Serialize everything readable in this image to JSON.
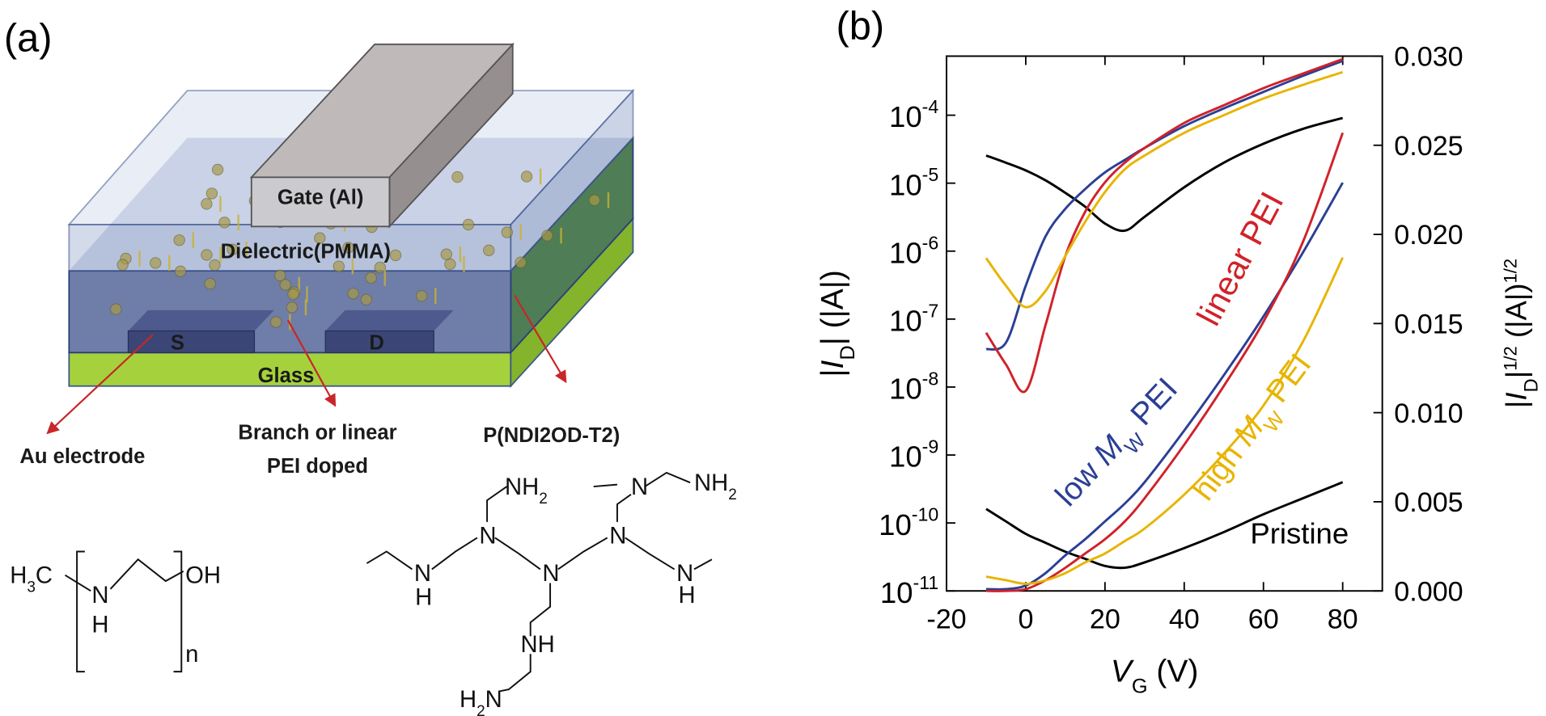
{
  "panel_labels": [
    "(a)",
    "(b)"
  ],
  "diagram": {
    "layers": {
      "gate": "Gate (Al)",
      "dielectric": "Dielectric(PMMA)",
      "source": "S",
      "drain": "D",
      "substrate": "Glass"
    },
    "callouts": {
      "electrode": "Au electrode",
      "dopant": [
        "Branch or linear",
        "PEI doped"
      ],
      "semiconductor": "P(NDI2OD-T2)"
    },
    "linear_pei": {
      "end_left": [
        "H",
        {
          "sub": "3"
        },
        "C"
      ],
      "amine_n": "N",
      "amine_h": "H",
      "end_right": "OH",
      "repeat": "n"
    },
    "branched_pei": {
      "atoms": [
        [
          "N"
        ],
        [
          "H"
        ],
        [
          "N"
        ],
        [
          "N"
        ],
        [
          "N"
        ],
        [
          "N"
        ],
        [
          "H"
        ],
        [
          "NH",
          {
            "sub": "2"
          }
        ],
        [
          "N"
        ],
        [
          "NH",
          {
            "sub": "2"
          }
        ],
        [
          "NH"
        ],
        [
          "H",
          {
            "sub": "2"
          },
          "N"
        ]
      ]
    }
  },
  "chart_data": {
    "type": "line",
    "xlabel": [
      {
        "i": "V"
      },
      {
        "sub": "G"
      },
      " (V)"
    ],
    "ylabel": [
      "|",
      {
        "i": "I"
      },
      {
        "sub": "D"
      },
      "| (|A|)"
    ],
    "y2label": [
      "|",
      {
        "i": "I"
      },
      {
        "sub": "D"
      },
      "|",
      {
        "sup": "1/2"
      },
      " (|A|)",
      {
        "sup": "1/2"
      }
    ],
    "x": [
      -10,
      -5,
      0,
      5,
      10,
      15,
      20,
      25,
      30,
      40,
      50,
      60,
      70,
      80
    ],
    "xlim": [
      -20,
      90
    ],
    "xticks": [
      -20,
      0,
      20,
      40,
      60,
      80
    ],
    "yscale": "log",
    "ylim": [
      1e-11,
      0.00074
    ],
    "yticks": [
      {
        "value": 1e-11,
        "label": "10-11"
      },
      {
        "value": 1e-10,
        "label": "10-10"
      },
      {
        "value": 1e-09,
        "label": "10-9"
      },
      {
        "value": 1e-08,
        "label": "10-8"
      },
      {
        "value": 1e-07,
        "label": "10-7"
      },
      {
        "value": 1e-06,
        "label": "10-6"
      },
      {
        "value": 1e-05,
        "label": "10-5"
      },
      {
        "value": 0.0001,
        "label": "10-4"
      }
    ],
    "y2lim": [
      0,
      0.03
    ],
    "y2ticks": [
      {
        "value": 0,
        "label": "0.000"
      },
      {
        "value": 0.005,
        "label": "0.005"
      },
      {
        "value": 0.01,
        "label": "0.010"
      },
      {
        "value": 0.015,
        "label": "0.015"
      },
      {
        "value": 0.02,
        "label": "0.020"
      },
      {
        "value": 0.025,
        "label": "0.025"
      },
      {
        "value": 0.03,
        "label": "0.030"
      }
    ],
    "series": [
      {
        "color": "#000000",
        "values": [
          2.55e-05,
          2e-05,
          1.54e-05,
          1.1e-05,
          7.2e-06,
          4.5e-06,
          2.55e-06,
          2e-06,
          3.2e-06,
          8.7e-06,
          2e-05,
          3.8e-05,
          6.3e-05,
          9.1e-05
        ]
      },
      {
        "color": "#2b3f95",
        "values": [
          3.6e-08,
          4.5e-08,
          3.1e-07,
          1.65e-06,
          4.2e-06,
          8.2e-06,
          1.44e-05,
          2.2e-05,
          3.3e-05,
          6.9e-05,
          0.000126,
          0.00022,
          0.00038,
          0.00063
        ]
      },
      {
        "color": "#d0222a",
        "values": [
          6.3e-08,
          2.15e-08,
          8.8e-09,
          8.2e-08,
          8.5e-07,
          3.8e-06,
          1.03e-05,
          2e-05,
          3.3e-05,
          7.7e-05,
          0.00014,
          0.00025,
          0.00041,
          0.00067
        ]
      },
      {
        "color": "#e8b400",
        "values": [
          7.9e-07,
          3.1e-07,
          1.5e-07,
          2.6e-07,
          8.5e-07,
          2.7e-06,
          7.4e-06,
          1.6e-05,
          2.55e-05,
          5.5e-05,
          0.0001,
          0.000176,
          0.00028,
          0.00043
        ]
      },
      {
        "color": "#000000",
        "axis": "y2",
        "values": [
          0.0046,
          0.0039,
          0.0032,
          0.0027,
          0.0022,
          0.0018,
          0.0014,
          0.0013,
          0.0016,
          0.0024,
          0.0033,
          0.0043,
          0.0052,
          0.0061
        ]
      },
      {
        "color": "#2b3f95",
        "axis": "y2",
        "values": [
          0.0001,
          0.0001,
          0.0003,
          0.001,
          0.002,
          0.0029,
          0.0039,
          0.0049,
          0.0061,
          0.009,
          0.0121,
          0.0154,
          0.019,
          0.0229
        ]
      },
      {
        "color": "#d0222a",
        "axis": "y2",
        "values": [
          0,
          0,
          0.0001,
          0.0006,
          0.0013,
          0.0021,
          0.0029,
          0.0039,
          0.0052,
          0.0082,
          0.0115,
          0.0151,
          0.0196,
          0.0257
        ]
      },
      {
        "color": "#e8b400",
        "axis": "y2",
        "values": [
          0.0008,
          0.0006,
          0.0004,
          0.0006,
          0.001,
          0.0016,
          0.0021,
          0.0028,
          0.0035,
          0.0054,
          0.0077,
          0.0104,
          0.014,
          0.0187
        ]
      }
    ],
    "annotations": [
      {
        "text": [
          "linear PEI"
        ],
        "color": "#d0222a"
      },
      {
        "text": [
          "low ",
          {
            "i": "M"
          },
          {
            "sub": "W"
          },
          " PEI"
        ],
        "color": "#2b3f95"
      },
      {
        "text": [
          "high ",
          {
            "i": "M"
          },
          {
            "sub": "W"
          },
          " PEI"
        ],
        "color": "#e8b400"
      },
      {
        "text": [
          "Pristine"
        ],
        "color": "#000000"
      }
    ]
  }
}
